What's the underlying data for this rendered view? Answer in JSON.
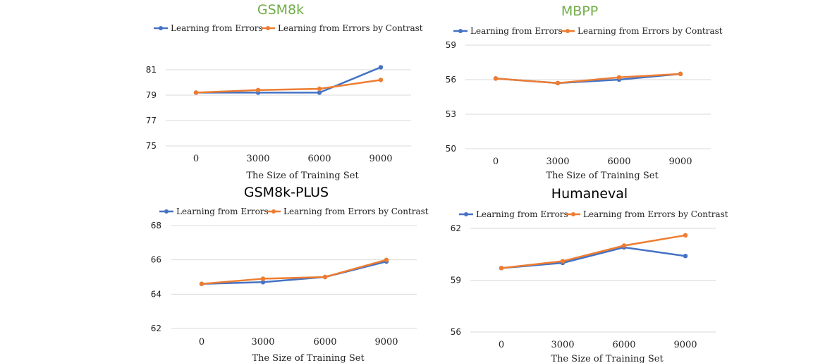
{
  "colors": {
    "errors": "#4472C4",
    "contrast": "#ED7D31",
    "title_green": "#70AD47",
    "title_black": "#000000"
  },
  "chart_data": [
    {
      "type": "line",
      "title": "GSM8k",
      "title_color": "green",
      "xlabel": "The Size of Training Set",
      "categories": [
        "0",
        "3000",
        "6000",
        "9000"
      ],
      "yticks": [
        "75",
        "77",
        "79",
        "81"
      ],
      "ylim": [
        75,
        82
      ],
      "grid": true,
      "legend": "top",
      "series": [
        {
          "name": "Learning from Errors",
          "values": [
            79.2,
            79.2,
            79.2,
            81.2
          ]
        },
        {
          "name": "Learning from Errors by Contrast",
          "values": [
            79.2,
            79.4,
            79.5,
            80.2
          ]
        }
      ]
    },
    {
      "type": "line",
      "title": "MBPP",
      "title_color": "green",
      "xlabel": "The Size of Training Set",
      "categories": [
        "0",
        "3000",
        "6000",
        "9000"
      ],
      "yticks": [
        "50",
        "53",
        "56",
        "59"
      ],
      "ylim": [
        50,
        59
      ],
      "grid": true,
      "legend": "top",
      "series": [
        {
          "name": "Learning from Errors",
          "values": [
            56.1,
            55.7,
            56.0,
            56.5
          ]
        },
        {
          "name": "Learning from Errors by Contrast",
          "values": [
            56.1,
            55.7,
            56.2,
            56.5
          ]
        }
      ]
    },
    {
      "type": "line",
      "title": "GSM8k-PLUS",
      "title_color": "black",
      "xlabel": "The Size of Training Set",
      "categories": [
        "0",
        "3000",
        "6000",
        "9000"
      ],
      "yticks": [
        "62",
        "64",
        "66",
        "68"
      ],
      "ylim": [
        62,
        68
      ],
      "grid": true,
      "legend": "top",
      "series": [
        {
          "name": "Learning from Errors",
          "values": [
            64.6,
            64.7,
            65.0,
            65.9
          ]
        },
        {
          "name": "Learning from Errors by Contrast",
          "values": [
            64.6,
            64.9,
            65.0,
            66.0
          ]
        }
      ]
    },
    {
      "type": "line",
      "title": "Humaneval",
      "title_color": "black",
      "xlabel": "The Size of Training Set",
      "categories": [
        "0",
        "3000",
        "6000",
        "9000"
      ],
      "yticks": [
        "56",
        "59",
        "62"
      ],
      "ylim": [
        56,
        62
      ],
      "grid": true,
      "legend": "top",
      "series": [
        {
          "name": "Learning from Errors",
          "values": [
            59.7,
            60.0,
            60.9,
            60.4
          ]
        },
        {
          "name": "Learning from Errors by Contrast",
          "values": [
            59.7,
            60.1,
            61.0,
            61.6
          ]
        }
      ]
    }
  ]
}
